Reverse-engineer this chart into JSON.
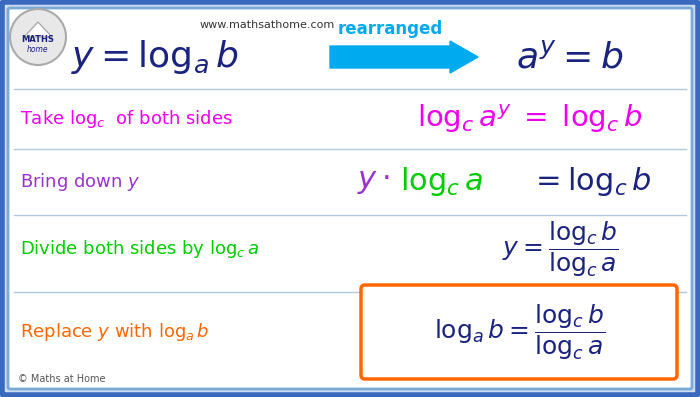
{
  "bg_color": "#cddcee",
  "inner_bg": "#ffffff",
  "border_color": "#3a6abf",
  "inner_border_color": "#7aaad8",
  "title_url": "www.mathsathome.com",
  "copyright": "© Maths at Home",
  "row1_left_math": "$y = \\log_a b$",
  "row1_right_math": "$a^y = b$",
  "row1_color": "#1a237e",
  "row1_arrow_color": "#00aaee",
  "row1_arrow_label": "rearranged",
  "row1_arrow_label_color": "#00aaee",
  "row2_left_text": "Take $\\log_c\\,$ of both sides",
  "row2_left_color": "#ee00ee",
  "row2_right_math": "$\\log_c a^y \\; = \\log_c b$",
  "row2_right_color": "#ee00ee",
  "row3_left_text": "Bring down $y$",
  "row3_left_color": "#9933cc",
  "row3_right_y": "$y \\cdot$",
  "row3_right_y_color": "#9933cc",
  "row3_right_log": "$\\log_c a$",
  "row3_right_log_color": "#00cc00",
  "row3_right_eq": "$= \\log_c b$",
  "row3_right_eq_color": "#1a237e",
  "row4_left_text": "Divide both sides by $\\log_c a$",
  "row4_left_color": "#00cc00",
  "row4_right_math": "$y = \\dfrac{\\log_c b}{\\log_c a}$",
  "row4_right_color": "#1a237e",
  "row5_left_text": "Replace $y$ with $\\log_a b$",
  "row5_left_color": "#ff6600",
  "row5_right_math": "$\\log_a b = \\dfrac{\\log_c b}{\\log_c a}$",
  "row5_right_color": "#1a237e",
  "row5_box_color": "#ff6600",
  "figsize": [
    7.0,
    3.97
  ],
  "dpi": 100
}
